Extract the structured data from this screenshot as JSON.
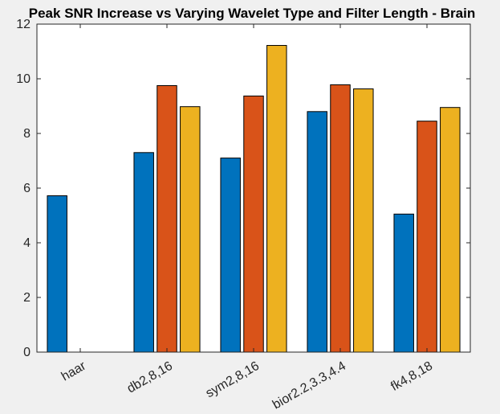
{
  "chart_data": {
    "type": "bar",
    "title": "Peak SNR Increase vs Varying Wavelet Type and Filter Length - Brain",
    "xlabel": "",
    "ylabel": "",
    "categories": [
      "haar",
      "db2,8,16",
      "sym2,8,16",
      "bior2.2,3.3,4.4",
      "fk4,8,18"
    ],
    "series": [
      {
        "color": "#0072bd",
        "values": [
          5.72,
          7.3,
          7.1,
          8.8,
          5.05
        ]
      },
      {
        "color": "#d95319",
        "values": [
          null,
          9.75,
          9.37,
          9.78,
          8.45
        ]
      },
      {
        "color": "#edb120",
        "values": [
          null,
          8.98,
          11.22,
          9.63,
          8.95
        ]
      }
    ],
    "ylim": [
      0,
      12
    ],
    "yticks": [
      0,
      2,
      4,
      6,
      8,
      10,
      12
    ],
    "grid": false,
    "legend": "none"
  }
}
